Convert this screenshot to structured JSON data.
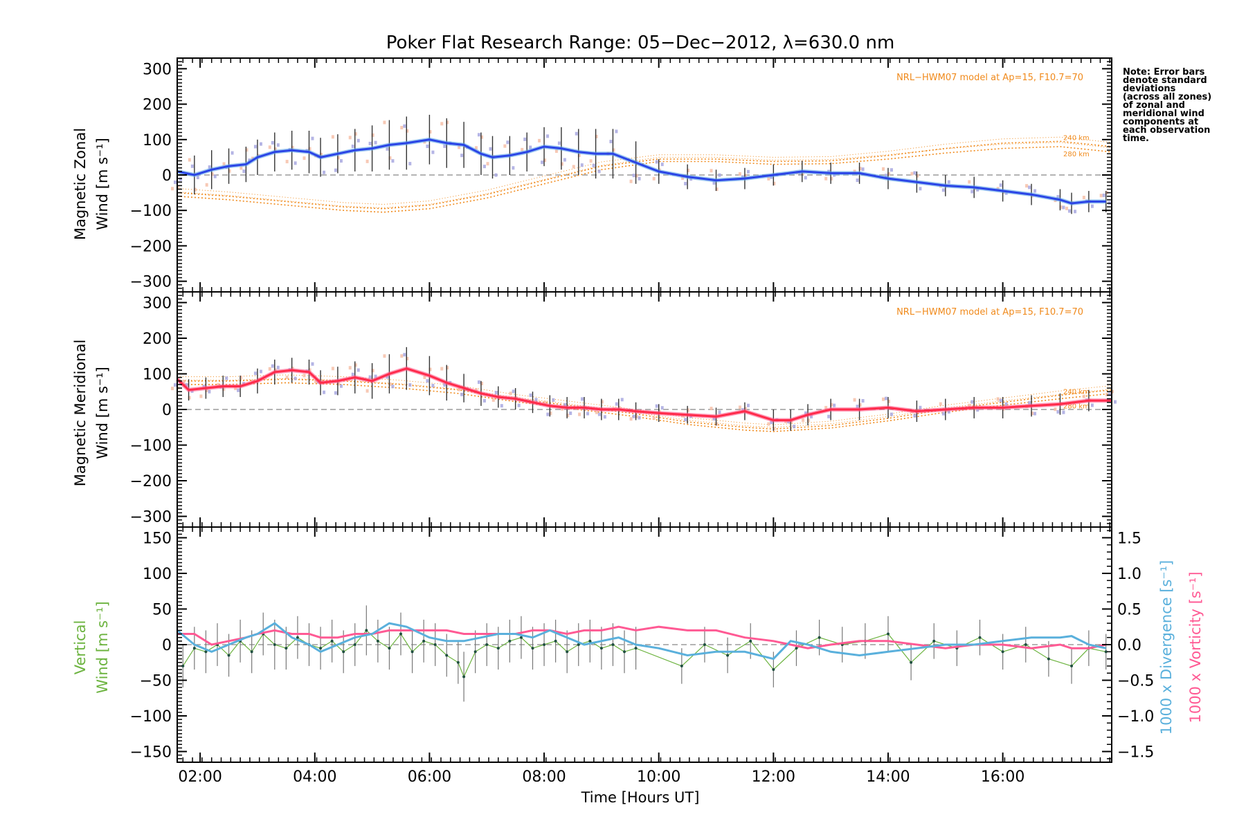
{
  "title": "Poker Flat Research Range: 05−Dec−2012, λ=630.0 nm",
  "note": [
    "Note: Error bars",
    "denote standard",
    "deviations",
    "(across all zones)",
    "of zonal and",
    "meridional wind",
    "components at",
    "each observation",
    "time."
  ],
  "colors": {
    "zonal_line": "#2a44e6",
    "zonal_fit": "#5ea4e8",
    "meridional_line": "#ff2a4a",
    "meridional_fit": "#ff5a8a",
    "model": "#f08a1c",
    "vertical": "#6cb33f",
    "divergence": "#5ab0dc",
    "vorticity": "#ff5a94",
    "zone_scatter": "#a8a8e0",
    "zone_scatter2": "#f6c0a8"
  },
  "chart_data": [
    {
      "type": "line",
      "name": "zonal",
      "ylabel_line1": "Magnetic Zonal",
      "ylabel_line2": "Wind [m s⁻¹]",
      "ylim": [
        -330,
        330
      ],
      "xlim": [
        1.6,
        17.9
      ],
      "yticks": [
        "−300",
        "−200",
        "−100",
        "0",
        "100",
        "200",
        "300"
      ],
      "ytick_values": [
        -300,
        -200,
        -100,
        0,
        100,
        200,
        300
      ],
      "model_note": "NRL−HWM07 model at Ap=15, F10.7=70",
      "model_labels": [
        "240 km",
        "280 km"
      ],
      "model_series": [
        {
          "x": [
            1.6,
            2.5,
            3.5,
            4.5,
            5.2,
            6.0,
            7.0,
            8.0,
            9.0,
            10.0,
            11.0,
            12.0,
            13.0,
            14.0,
            15.0,
            16.0,
            17.0,
            17.9
          ],
          "y": [
            -50,
            -60,
            -75,
            -90,
            -95,
            -85,
            -55,
            -15,
            25,
            45,
            45,
            38,
            40,
            55,
            75,
            90,
            95,
            80
          ]
        },
        {
          "x": [
            1.6,
            2.5,
            3.5,
            4.5,
            5.2,
            6.0,
            7.0,
            8.0,
            9.0,
            10.0,
            11.0,
            12.0,
            13.0,
            14.0,
            15.0,
            16.0,
            17.0,
            17.9
          ],
          "y": [
            -60,
            -70,
            -85,
            -100,
            -105,
            -95,
            -65,
            -25,
            15,
            38,
            38,
            30,
            32,
            45,
            62,
            75,
            80,
            65
          ]
        }
      ],
      "x": [
        1.6,
        1.9,
        2.2,
        2.5,
        2.8,
        3.0,
        3.3,
        3.6,
        3.9,
        4.1,
        4.4,
        4.7,
        5.0,
        5.3,
        5.6,
        6.0,
        6.3,
        6.6,
        6.9,
        7.1,
        7.4,
        7.7,
        8.0,
        8.3,
        8.6,
        8.9,
        9.2,
        9.6,
        10.0,
        10.5,
        11.0,
        11.5,
        12.0,
        12.5,
        13.0,
        13.5,
        14.0,
        14.5,
        15.0,
        15.5,
        16.0,
        16.5,
        17.0,
        17.2,
        17.5,
        17.8
      ],
      "y": [
        10,
        0,
        15,
        25,
        30,
        50,
        65,
        70,
        65,
        50,
        60,
        70,
        75,
        85,
        90,
        100,
        90,
        85,
        60,
        50,
        55,
        65,
        80,
        75,
        65,
        60,
        60,
        35,
        10,
        -5,
        -15,
        -10,
        0,
        10,
        5,
        5,
        -10,
        -20,
        -30,
        -35,
        -45,
        -55,
        -70,
        -80,
        -75,
        -75
      ],
      "err": [
        55,
        55,
        55,
        50,
        50,
        50,
        55,
        55,
        60,
        55,
        55,
        60,
        65,
        70,
        75,
        70,
        70,
        65,
        60,
        60,
        55,
        55,
        55,
        60,
        65,
        70,
        70,
        60,
        35,
        35,
        30,
        30,
        30,
        30,
        30,
        30,
        30,
        30,
        30,
        30,
        30,
        30,
        30,
        30,
        30,
        30
      ]
    },
    {
      "type": "line",
      "name": "meridional",
      "ylabel_line1": "Magnetic Meridional",
      "ylabel_line2": "Wind [m s⁻¹]",
      "ylim": [
        -330,
        330
      ],
      "xlim": [
        1.6,
        17.9
      ],
      "yticks": [
        "−300",
        "−200",
        "−100",
        "0",
        "100",
        "200",
        "300"
      ],
      "ytick_values": [
        -300,
        -200,
        -100,
        0,
        100,
        200,
        300
      ],
      "model_note": "NRL−HWM07 model at Ap=15, F10.7=70",
      "model_labels": [
        "240 km",
        "280 km"
      ],
      "model_series": [
        {
          "x": [
            1.6,
            2.5,
            3.5,
            4.5,
            5.5,
            6.5,
            7.5,
            8.5,
            9.5,
            10.5,
            11.5,
            12.0,
            13.0,
            14.0,
            15.0,
            16.0,
            17.0,
            17.9
          ],
          "y": [
            80,
            80,
            85,
            80,
            70,
            55,
            30,
            10,
            -10,
            -35,
            -50,
            -55,
            -45,
            -25,
            0,
            20,
            40,
            55
          ]
        },
        {
          "x": [
            1.6,
            2.5,
            3.5,
            4.5,
            5.5,
            6.5,
            7.5,
            8.5,
            9.5,
            10.5,
            11.5,
            12.0,
            13.0,
            14.0,
            15.0,
            16.0,
            17.0,
            17.9
          ],
          "y": [
            70,
            70,
            75,
            70,
            60,
            45,
            22,
            2,
            -18,
            -42,
            -58,
            -62,
            -52,
            -32,
            -8,
            12,
            30,
            45
          ]
        }
      ],
      "x": [
        1.6,
        1.8,
        2.1,
        2.4,
        2.7,
        3.0,
        3.3,
        3.6,
        3.9,
        4.1,
        4.4,
        4.7,
        5.0,
        5.3,
        5.6,
        6.0,
        6.3,
        6.6,
        6.9,
        7.2,
        7.5,
        7.8,
        8.1,
        8.4,
        8.7,
        9.0,
        9.3,
        9.6,
        10.0,
        10.5,
        11.0,
        11.5,
        12.0,
        12.3,
        12.6,
        13.0,
        13.5,
        14.0,
        14.5,
        15.0,
        15.5,
        16.0,
        16.5,
        17.0,
        17.5,
        17.9
      ],
      "y": [
        85,
        55,
        60,
        65,
        65,
        80,
        105,
        110,
        105,
        75,
        80,
        90,
        80,
        100,
        115,
        95,
        75,
        60,
        45,
        35,
        30,
        20,
        10,
        5,
        5,
        0,
        0,
        -5,
        -10,
        -15,
        -20,
        -5,
        -30,
        -30,
        -15,
        0,
        0,
        5,
        -5,
        0,
        5,
        5,
        10,
        15,
        25,
        25
      ],
      "err": [
        30,
        30,
        30,
        30,
        30,
        35,
        35,
        35,
        35,
        35,
        40,
        45,
        50,
        55,
        60,
        55,
        50,
        40,
        35,
        30,
        30,
        30,
        30,
        30,
        30,
        30,
        30,
        25,
        25,
        25,
        25,
        25,
        30,
        30,
        30,
        30,
        30,
        30,
        30,
        30,
        30,
        30,
        30,
        30,
        30,
        30
      ]
    },
    {
      "type": "line",
      "name": "vertical",
      "ylabel_line1": "Vertical",
      "ylabel_line2": "Wind [m s⁻¹]",
      "ylabel_right1": "1000 x Divergence [s⁻¹]",
      "ylabel_right2": "1000 x Vorticity [s⁻¹]",
      "xlabel": "Time [Hours UT]",
      "ylim": [
        -165,
        165
      ],
      "ylim_right": [
        -1.65,
        1.65
      ],
      "xlim": [
        1.6,
        17.9
      ],
      "xticks": [
        "02:00",
        "04:00",
        "06:00",
        "08:00",
        "10:00",
        "12:00",
        "14:00",
        "16:00"
      ],
      "xtick_values": [
        2,
        4,
        6,
        8,
        10,
        12,
        14,
        16
      ],
      "yticks": [
        "−150",
        "−100",
        "−50",
        "0",
        "50",
        "100",
        "150"
      ],
      "ytick_values": [
        -150,
        -100,
        -50,
        0,
        50,
        100,
        150
      ],
      "yticks_right": [
        "−1.5",
        "−1.0",
        "−0.5",
        "0.0",
        "0.5",
        "1.0",
        "1.5"
      ],
      "ytick_values_right": [
        -1.5,
        -1.0,
        -0.5,
        0.0,
        0.5,
        1.0,
        1.5
      ],
      "vertical_x": [
        1.7,
        1.9,
        2.1,
        2.3,
        2.5,
        2.7,
        2.9,
        3.1,
        3.3,
        3.5,
        3.7,
        3.9,
        4.1,
        4.3,
        4.5,
        4.7,
        4.9,
        5.1,
        5.3,
        5.5,
        5.7,
        5.9,
        6.1,
        6.3,
        6.5,
        6.6,
        6.8,
        7.0,
        7.2,
        7.4,
        7.6,
        7.8,
        8.0,
        8.2,
        8.4,
        8.6,
        8.8,
        9.0,
        9.2,
        9.4,
        9.6,
        10.4,
        10.8,
        11.2,
        11.6,
        12.0,
        12.4,
        12.8,
        13.2,
        13.6,
        14.0,
        14.4,
        14.8,
        15.2,
        15.6,
        16.0,
        16.4,
        16.8,
        17.2,
        17.5,
        17.8
      ],
      "vertical_y": [
        -30,
        -5,
        -10,
        0,
        -15,
        5,
        -10,
        15,
        0,
        -5,
        10,
        0,
        -5,
        5,
        -10,
        0,
        20,
        5,
        -5,
        15,
        -10,
        5,
        0,
        -15,
        -25,
        -45,
        -10,
        0,
        -5,
        5,
        10,
        -5,
        0,
        5,
        -10,
        0,
        5,
        -5,
        0,
        -10,
        -5,
        -30,
        0,
        -15,
        5,
        -35,
        -5,
        10,
        0,
        5,
        15,
        -25,
        5,
        -5,
        10,
        -10,
        0,
        -20,
        -30,
        -5,
        -10
      ],
      "vertical_err": [
        30,
        30,
        30,
        30,
        30,
        30,
        30,
        30,
        35,
        30,
        30,
        30,
        30,
        30,
        30,
        30,
        35,
        30,
        30,
        30,
        30,
        30,
        30,
        30,
        30,
        35,
        30,
        30,
        30,
        30,
        30,
        30,
        30,
        30,
        30,
        30,
        30,
        30,
        30,
        30,
        30,
        25,
        25,
        25,
        25,
        25,
        25,
        25,
        25,
        25,
        25,
        25,
        25,
        25,
        25,
        25,
        25,
        25,
        25,
        25,
        25
      ],
      "divergence_x": [
        1.6,
        1.9,
        2.2,
        2.5,
        2.8,
        3.0,
        3.3,
        3.6,
        3.9,
        4.1,
        4.4,
        4.7,
        5.0,
        5.3,
        5.6,
        6.0,
        6.3,
        6.6,
        6.9,
        7.2,
        7.5,
        7.8,
        8.1,
        8.4,
        8.7,
        9.0,
        9.3,
        9.6,
        10.0,
        10.5,
        11.0,
        11.5,
        12.0,
        12.3,
        12.6,
        13.0,
        13.5,
        14.0,
        14.5,
        15.0,
        15.5,
        16.0,
        16.5,
        17.0,
        17.2,
        17.5,
        17.8
      ],
      "divergence_y": [
        0.2,
        0.0,
        -0.1,
        0.0,
        0.1,
        0.15,
        0.3,
        0.1,
        0.0,
        -0.1,
        0.0,
        0.1,
        0.15,
        0.3,
        0.25,
        0.1,
        0.05,
        0.05,
        0.1,
        0.15,
        0.15,
        0.1,
        0.2,
        0.1,
        0.0,
        0.05,
        0.1,
        0.0,
        -0.05,
        -0.15,
        -0.1,
        -0.1,
        -0.2,
        0.05,
        0.0,
        -0.1,
        -0.15,
        -0.1,
        -0.05,
        0.0,
        0.0,
        0.05,
        0.1,
        0.1,
        0.12,
        0.0,
        -0.05
      ],
      "vorticity_x": [
        1.6,
        1.9,
        2.2,
        2.5,
        2.8,
        3.0,
        3.3,
        3.6,
        3.9,
        4.1,
        4.4,
        4.7,
        5.0,
        5.3,
        5.6,
        6.0,
        6.3,
        6.6,
        6.9,
        7.2,
        7.5,
        7.8,
        8.1,
        8.4,
        8.7,
        9.0,
        9.3,
        9.6,
        10.0,
        10.5,
        11.0,
        11.5,
        12.0,
        12.3,
        12.6,
        13.0,
        13.5,
        14.0,
        14.5,
        15.0,
        15.5,
        16.0,
        16.5,
        17.0,
        17.2,
        17.5,
        17.8
      ],
      "vorticity_y": [
        0.15,
        0.15,
        0.0,
        0.05,
        0.1,
        0.15,
        0.2,
        0.15,
        0.15,
        0.1,
        0.1,
        0.15,
        0.15,
        0.2,
        0.2,
        0.2,
        0.2,
        0.15,
        0.15,
        0.15,
        0.15,
        0.2,
        0.2,
        0.15,
        0.2,
        0.2,
        0.25,
        0.2,
        0.25,
        0.2,
        0.2,
        0.1,
        0.05,
        0.0,
        -0.05,
        0.0,
        0.05,
        0.05,
        0.0,
        -0.05,
        0.0,
        0.0,
        -0.05,
        0.0,
        -0.05,
        -0.05,
        0.0
      ]
    }
  ]
}
